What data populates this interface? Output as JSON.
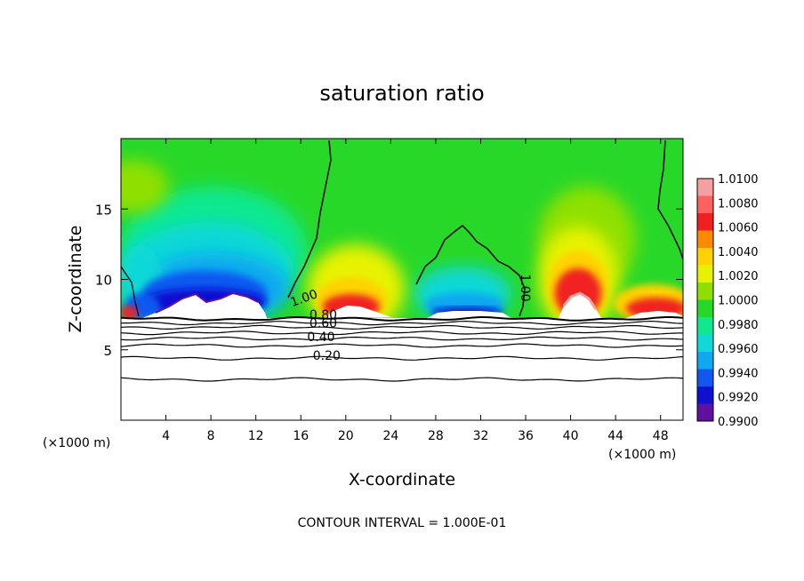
{
  "chart_data": {
    "type": "contour",
    "title": "saturation ratio",
    "xlabel": "X-coordinate",
    "ylabel": "Z-coordinate",
    "x_unit_left": "(×1000 m)",
    "x_unit_right": "(×1000 m)",
    "xlim": [
      0,
      50
    ],
    "ylim": [
      0,
      20
    ],
    "x_ticks": [
      "4",
      "8",
      "12",
      "16",
      "20",
      "24",
      "28",
      "32",
      "36",
      "40",
      "44",
      "48"
    ],
    "x_tick_values": [
      4,
      8,
      12,
      16,
      20,
      24,
      28,
      32,
      36,
      40,
      44,
      48
    ],
    "y_ticks": [
      "5",
      "10",
      "15"
    ],
    "y_tick_values": [
      5,
      10,
      15
    ],
    "footer": "CONTOUR INTERVAL = 1.000E-01",
    "colorbar": {
      "labels": [
        "1.0100",
        "1.0080",
        "1.0060",
        "1.0040",
        "1.0020",
        "1.0000",
        "0.9980",
        "0.9960",
        "0.9940",
        "0.9920",
        "0.9900"
      ],
      "values": [
        1.01,
        1.008,
        1.006,
        1.004,
        1.002,
        1.0,
        0.998,
        0.996,
        0.994,
        0.992,
        0.99
      ],
      "colors": [
        "#f4a0a0",
        "#ff6060",
        "#f02020",
        "#ff8a00",
        "#ffd200",
        "#e8f200",
        "#8fe000",
        "#28d828",
        "#10e890",
        "#10d8d8",
        "#10a8f0",
        "#1058f0",
        "#1010d0",
        "#6010a0"
      ]
    },
    "contour_labels": [
      {
        "text": "1.00",
        "x": 16.4,
        "z": 8.4,
        "angle": -20
      },
      {
        "text": "0.80",
        "x": 18.0,
        "z": 7.2,
        "angle": 0
      },
      {
        "text": "0.60",
        "x": 18.0,
        "z": 6.6,
        "angle": 0
      },
      {
        "text": "0.40",
        "x": 17.8,
        "z": 5.6,
        "angle": 0
      },
      {
        "text": "0.20",
        "x": 18.3,
        "z": 4.3,
        "angle": 0
      },
      {
        "text": "1.00",
        "x": 35.6,
        "z": 9.4,
        "angle": 90
      }
    ],
    "low_level_contours": [
      {
        "z": 7.2
      },
      {
        "z": 6.9
      },
      {
        "z": 6.6
      },
      {
        "z": 6.2
      },
      {
        "z": 5.8
      },
      {
        "z": 5.3
      },
      {
        "z": 4.4
      },
      {
        "z": 2.9
      }
    ]
  }
}
